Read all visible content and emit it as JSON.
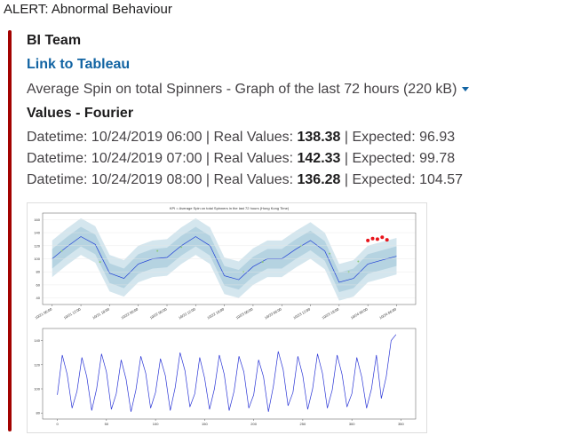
{
  "header": {
    "alert": "ALERT: Abnormal Behaviour"
  },
  "message": {
    "author": "BI Team",
    "link": "Link to Tableau",
    "attachment": "Average Spin on total Spinners - Graph of the last 72 hours (220 kB)",
    "section": "Values - Fourier",
    "rows": [
      {
        "lead": "Datetime: 10/24/2019 06:00 | Real Values: ",
        "real": "138.38",
        "tail": " | Expected: 96.93"
      },
      {
        "lead": "Datetime: 10/24/2019 07:00 | Real Values: ",
        "real": "142.33",
        "tail": " | Expected: 99.78"
      },
      {
        "lead": "Datetime: 10/24/2019 08:00 | Real Values: ",
        "real": "136.28",
        "tail": " | Expected: 104.57"
      }
    ]
  },
  "chart_data": [
    {
      "type": "line",
      "title": "KPI = Average Spin on total Spinners in the last 72 hours (Hong Kong Time)",
      "x": [
        0,
        3,
        6,
        9,
        12,
        15,
        18,
        21,
        24,
        27,
        30,
        33,
        36,
        39,
        42,
        45,
        48,
        51,
        54,
        57,
        60,
        63,
        66,
        69,
        72
      ],
      "expected": {
        "color": "#1f3fd6",
        "values": [
          100,
          118,
          134,
          122,
          78,
          70,
          92,
          100,
          102,
          120,
          134,
          120,
          74,
          68,
          88,
          100,
          100,
          115,
          128,
          112,
          64,
          70,
          92,
          98,
          104
        ]
      },
      "bands": [
        {
          "color": "#d4e6ee",
          "upper": [
            128,
            146,
            162,
            150,
            106,
            98,
            120,
            128,
            130,
            148,
            162,
            148,
            102,
            96,
            116,
            128,
            128,
            143,
            156,
            140,
            92,
            98,
            120,
            126,
            132
          ],
          "lower": [
            72,
            90,
            106,
            94,
            50,
            42,
            64,
            72,
            74,
            92,
            106,
            92,
            46,
            40,
            60,
            72,
            72,
            87,
            100,
            84,
            36,
            42,
            64,
            70,
            76
          ]
        },
        {
          "color": "#b5d3e1",
          "upper": [
            115,
            133,
            149,
            137,
            93,
            85,
            107,
            115,
            117,
            135,
            149,
            135,
            89,
            83,
            103,
            115,
            115,
            130,
            143,
            127,
            79,
            85,
            107,
            113,
            119
          ],
          "lower": [
            85,
            103,
            119,
            107,
            63,
            55,
            77,
            85,
            87,
            105,
            119,
            105,
            59,
            53,
            73,
            85,
            85,
            100,
            113,
            97,
            49,
            55,
            77,
            83,
            89
          ]
        }
      ],
      "points": [
        {
          "color": "#8cc97a",
          "x": [
            2,
            10,
            22,
            27,
            40,
            44,
            52,
            58,
            62,
            64
          ],
          "values": [
            112,
            95,
            112,
            118,
            80,
            95,
            120,
            108,
            80,
            96
          ]
        },
        {
          "color": "#e8141b",
          "x": [
            66,
            67,
            68,
            69,
            70
          ],
          "values": [
            128,
            131,
            130,
            133,
            129
          ]
        }
      ],
      "xlim": [
        -2,
        76
      ],
      "xticks": [
        {
          "value": 0,
          "label": "10/21 06:00"
        },
        {
          "value": 6,
          "label": "10/21 12:00"
        },
        {
          "value": 12,
          "label": "10/21 18:00"
        },
        {
          "value": 18,
          "label": "10/22 00:00"
        },
        {
          "value": 24,
          "label": "10/22 06:00"
        },
        {
          "value": 30,
          "label": "10/22 12:00"
        },
        {
          "value": 36,
          "label": "10/22 18:00"
        },
        {
          "value": 42,
          "label": "10/23 00:00"
        },
        {
          "value": 48,
          "label": "10/23 06:00"
        },
        {
          "value": 54,
          "label": "10/23 12:00"
        },
        {
          "value": 60,
          "label": "10/23 18:00"
        },
        {
          "value": 66,
          "label": "10/24 00:00"
        },
        {
          "value": 72,
          "label": "10/24 06:00"
        }
      ],
      "ylim": [
        30,
        170
      ],
      "yticks": [
        40,
        60,
        80,
        100,
        120,
        140,
        160
      ],
      "grid": true
    },
    {
      "type": "line",
      "x": [
        0,
        5,
        10,
        15,
        20,
        25,
        30,
        35,
        40,
        45,
        50,
        55,
        60,
        65,
        70,
        75,
        80,
        85,
        90,
        95,
        100,
        105,
        110,
        115,
        120,
        125,
        130,
        135,
        140,
        145,
        150,
        155,
        160,
        165,
        170,
        175,
        180,
        185,
        190,
        195,
        200,
        205,
        210,
        215,
        220,
        225,
        230,
        235,
        240,
        245,
        250,
        255,
        260,
        265,
        270,
        275,
        280,
        285,
        290,
        295,
        300,
        305,
        310,
        315,
        320,
        325,
        330,
        335,
        340,
        345
      ],
      "color": "#2a35d6",
      "values": [
        95,
        128,
        112,
        84,
        98,
        126,
        110,
        82,
        100,
        129,
        114,
        83,
        96,
        124,
        108,
        81,
        99,
        127,
        113,
        84,
        97,
        125,
        111,
        82,
        101,
        130,
        115,
        85,
        96,
        126,
        109,
        83,
        100,
        128,
        112,
        82,
        98,
        127,
        114,
        84,
        95,
        124,
        110,
        81,
        102,
        131,
        116,
        86,
        97,
        127,
        111,
        83,
        100,
        129,
        113,
        84,
        99,
        128,
        112,
        85,
        96,
        126,
        110,
        84,
        100,
        128,
        92,
        110,
        140,
        145
      ],
      "xlim": [
        -15,
        365
      ],
      "xticks": [
        0,
        50,
        100,
        150,
        200,
        250,
        300,
        350
      ],
      "ylim": [
        75,
        150
      ],
      "yticks": [
        80,
        100,
        120,
        140
      ],
      "grid": false
    }
  ]
}
